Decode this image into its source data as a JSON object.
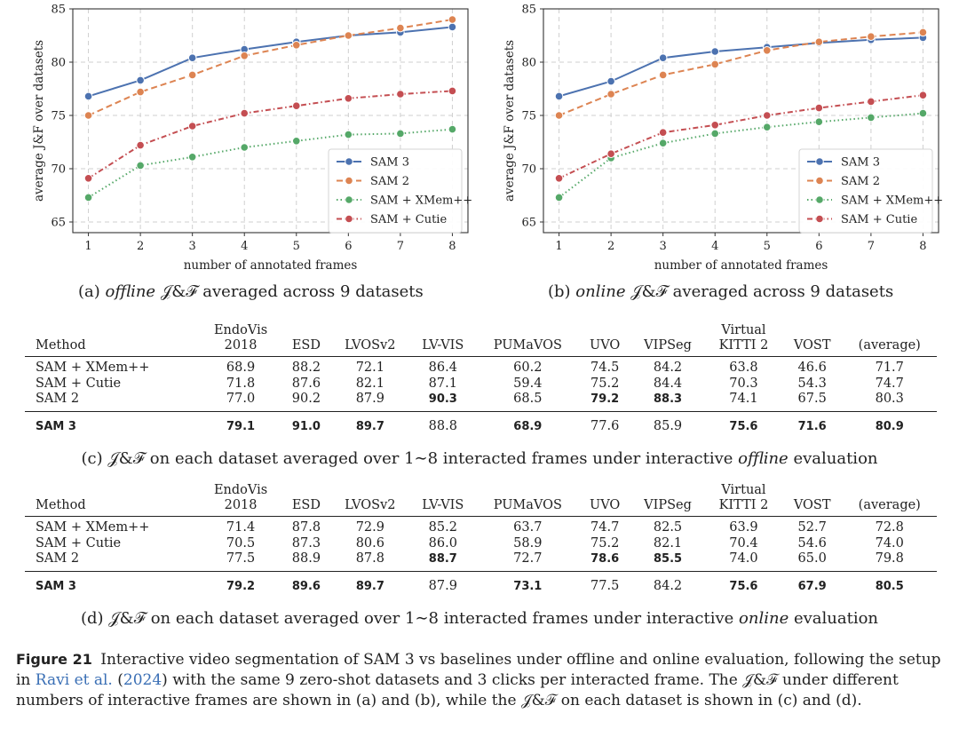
{
  "chart_data": [
    {
      "type": "line",
      "xlabel": "number of annotated frames",
      "ylabel": "average J&F over datasets",
      "x": [
        1,
        2,
        3,
        4,
        5,
        6,
        7,
        8
      ],
      "ylim": [
        64,
        85
      ],
      "yticks": [
        65,
        70,
        75,
        80,
        85
      ],
      "grid": true,
      "legend_position": "lower-right",
      "series": [
        {
          "name": "SAM 3",
          "color": "#4c72b0",
          "style": "solid",
          "values": [
            76.8,
            78.3,
            80.4,
            81.2,
            81.9,
            82.5,
            82.8,
            83.3
          ]
        },
        {
          "name": "SAM 2",
          "color": "#dd8452",
          "style": "dashed",
          "values": [
            75.0,
            77.2,
            78.8,
            80.6,
            81.6,
            82.5,
            83.2,
            84.0
          ]
        },
        {
          "name": "SAM + XMem++",
          "color": "#55a868",
          "style": "dotted",
          "values": [
            67.3,
            70.3,
            71.1,
            72.0,
            72.6,
            73.2,
            73.3,
            73.7
          ]
        },
        {
          "name": "SAM + Cutie",
          "color": "#c44e52",
          "style": "dashdot",
          "values": [
            69.1,
            72.2,
            74.0,
            75.2,
            75.9,
            76.6,
            77.0,
            77.3
          ]
        }
      ]
    },
    {
      "type": "line",
      "xlabel": "number of annotated frames",
      "ylabel": "average J&F over datasets",
      "x": [
        1,
        2,
        3,
        4,
        5,
        6,
        7,
        8
      ],
      "ylim": [
        64,
        85
      ],
      "yticks": [
        65,
        70,
        75,
        80,
        85
      ],
      "grid": true,
      "legend_position": "lower-right",
      "series": [
        {
          "name": "SAM 3",
          "color": "#4c72b0",
          "style": "solid",
          "values": [
            76.8,
            78.2,
            80.4,
            81.0,
            81.4,
            81.8,
            82.1,
            82.3
          ]
        },
        {
          "name": "SAM 2",
          "color": "#dd8452",
          "style": "dashed",
          "values": [
            75.0,
            77.0,
            78.8,
            79.8,
            81.1,
            81.9,
            82.4,
            82.8
          ]
        },
        {
          "name": "SAM + XMem++",
          "color": "#55a868",
          "style": "dotted",
          "values": [
            67.3,
            71.0,
            72.4,
            73.3,
            73.9,
            74.4,
            74.8,
            75.2
          ]
        },
        {
          "name": "SAM + Cutie",
          "color": "#c44e52",
          "style": "dashdot",
          "values": [
            69.1,
            71.4,
            73.4,
            74.1,
            75.0,
            75.7,
            76.3,
            76.9
          ]
        }
      ]
    }
  ],
  "captions": {
    "a_prefix": "(a) ",
    "a_mode": "offline",
    "a_suffix": " 𝒥&ℱ averaged across 9 datasets",
    "b_prefix": "(b) ",
    "b_mode": "online",
    "b_suffix": " 𝒥&ℱ averaged across 9 datasets",
    "c_prefix": "(c) 𝒥&ℱ on each dataset averaged over 1∼8 interacted frames under interactive ",
    "c_mode": "offline",
    "c_suffix": " evaluation",
    "d_prefix": "(d) 𝒥&ℱ on each dataset averaged over 1∼8 interacted frames under interactive ",
    "d_mode": "online",
    "d_suffix": " evaluation"
  },
  "table_columns": {
    "method": "Method",
    "endovis_top": "EndoVis",
    "endovis_bottom": "2018",
    "esd": "ESD",
    "lvosv2": "LVOSv2",
    "lvvis": "LV-VIS",
    "pumavos": "PUMaVOS",
    "uvo": "UVO",
    "vipseg": "VIPSeg",
    "vkitti_top": "Virtual",
    "vkitti_bottom": "KITTI 2",
    "vost": "VOST",
    "average": "(average)"
  },
  "table_offline": {
    "rows": [
      {
        "method": "SAM + XMem++",
        "values": [
          "68.9",
          "88.2",
          "72.1",
          "86.4",
          "60.2",
          "74.5",
          "84.2",
          "63.8",
          "46.6",
          "71.7"
        ]
      },
      {
        "method": "SAM + Cutie",
        "values": [
          "71.8",
          "87.6",
          "82.1",
          "87.1",
          "59.4",
          "75.2",
          "84.4",
          "70.3",
          "54.3",
          "74.7"
        ]
      },
      {
        "method": "SAM 2",
        "values": [
          "77.0",
          "90.2",
          "87.9",
          "90.3",
          "68.5",
          "79.2",
          "88.3",
          "74.1",
          "67.5",
          "80.3"
        ]
      },
      {
        "method": "SAM 3",
        "values": [
          "79.1",
          "91.0",
          "89.7",
          "88.8",
          "68.9",
          "77.6",
          "85.9",
          "75.6",
          "71.6",
          "80.9"
        ]
      }
    ]
  },
  "table_online": {
    "rows": [
      {
        "method": "SAM + XMem++",
        "values": [
          "71.4",
          "87.8",
          "72.9",
          "85.2",
          "63.7",
          "74.7",
          "82.5",
          "63.9",
          "52.7",
          "72.8"
        ]
      },
      {
        "method": "SAM + Cutie",
        "values": [
          "70.5",
          "87.3",
          "80.6",
          "86.0",
          "58.9",
          "75.2",
          "82.1",
          "70.4",
          "54.6",
          "74.0"
        ]
      },
      {
        "method": "SAM 2",
        "values": [
          "77.5",
          "88.9",
          "87.8",
          "88.7",
          "72.7",
          "78.6",
          "85.5",
          "74.0",
          "65.0",
          "79.8"
        ]
      },
      {
        "method": "SAM 3",
        "values": [
          "79.2",
          "89.6",
          "89.7",
          "87.9",
          "73.1",
          "77.5",
          "84.2",
          "75.6",
          "67.9",
          "80.5"
        ]
      }
    ]
  },
  "figure_caption": {
    "label": "Figure 21",
    "text1": "Interactive video segmentation of SAM 3 vs baselines under offline and online evaluation, following the setup in ",
    "ref_author": "Ravi et al.",
    "ref_year_open": " (",
    "ref_year": "2024",
    "ref_year_close": ")",
    "text2": " with the same 9 zero-shot datasets and 3 clicks per interacted frame. The 𝒥&ℱ under different numbers of interactive frames are shown in (a) and (b), while the 𝒥&ℱ on each dataset is shown in (c) and (d)."
  }
}
